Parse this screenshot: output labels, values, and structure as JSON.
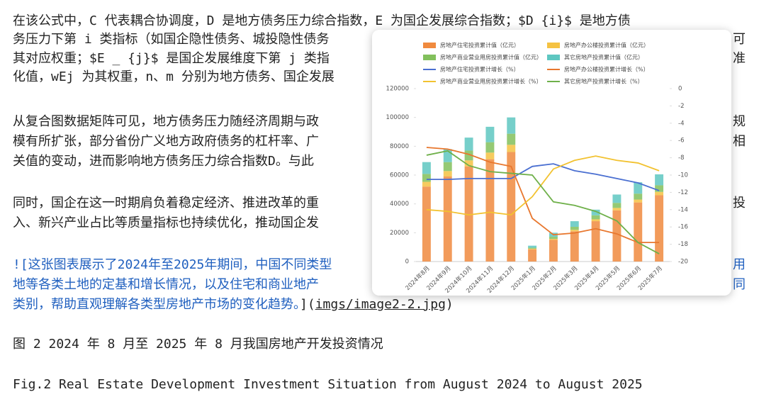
{
  "document": {
    "lines": [
      {
        "text": "在该公式中，C 代表耦合协调度，D 是地方债务压力综合指数，E 为国企发展综合指数；$D   {i}$ 是地方债"
      },
      {
        "text": "务压力下第 i 类指标（如国企隐性债务、城投隐性债务",
        "tail": "可"
      },
      {
        "text": "其对应权重；$E _ {j}$ 是国企发展维度下第 j 类指",
        "tail": "准"
      },
      {
        "text": "化值，wEj 为其权重，n、m 分别为地方债务、国企发展"
      },
      {
        "text": "从复合图数据矩阵可见，地方债务压力随经济周期与政",
        "tail": "规"
      },
      {
        "text": "模有所扩张，部分省份广义地方政府债务的杠杆率、广",
        "tail": "相"
      },
      {
        "text": "关值的变动，进而影响地方债务压力综合指数D。与此"
      },
      {
        "text": "同时，国企在这一时期肩负着稳定经济、推进改革的重",
        "tail": "投"
      },
      {
        "text": "入、新兴产业占比等质量指标也持续优化，推动国企发"
      }
    ],
    "image_link": {
      "lines": [
        {
          "text": "![这张图表展示了2024年至2025年期间，中国不同类型",
          "tail": "用"
        },
        {
          "text": "地等各类土地的定基和增长情况，以及住宅和商业地产",
          "tail": "同"
        },
        {
          "text": "类别，帮助直观理解各类型房地产市场的变化趋势。"
        }
      ],
      "close": "](",
      "path": "imgs/image2-2.jpg",
      "end": ")"
    },
    "caption_cn": "图 2 2024 年 8 月至 2025 年 8 月我国房地产开发投资情况",
    "caption_en": "Fig.2 Real Estate Development Investment Situation from August 2024 to August 2025"
  },
  "chart_data": {
    "type": "bar",
    "categories": [
      "2024年8月",
      "2024年9月",
      "2024年10月",
      "2024年11月",
      "2024年12月",
      "2025年1月",
      "2025年2月",
      "2025年3月",
      "2025年4月",
      "2025年5月",
      "2025年6月",
      "2025年7月"
    ],
    "series": [
      {
        "name": "房地产住宅投资累计值（亿元）",
        "color": "#f08a3e",
        "values": [
          52000,
          59000,
          66000,
          71000,
          76000,
          8500,
          15000,
          21000,
          28000,
          35500,
          41000,
          46000
        ]
      },
      {
        "name": "房地产办公楼投资累计值（亿元）",
        "color": "#f5c242",
        "values": [
          3300,
          3800,
          4200,
          4600,
          5000,
          400,
          700,
          1000,
          1300,
          1700,
          2000,
          2300
        ]
      },
      {
        "name": "房地产商业营业用房投资累计值（亿元）",
        "color": "#82c05c",
        "values": [
          5500,
          6200,
          6800,
          7200,
          7700,
          700,
          1500,
          2100,
          2800,
          3500,
          4100,
          4600
        ]
      },
      {
        "name": "其它房地产投资累计值（亿元）",
        "color": "#5ec7c1",
        "values": [
          8200,
          9000,
          9000,
          10700,
          11300,
          1400,
          2800,
          3900,
          3900,
          5800,
          7900,
          7600
        ]
      },
      {
        "name": "房地产住宅投资累计增长（%）",
        "color": "#4a6fd1",
        "type": "line",
        "axis": "y2",
        "values": [
          -10.5,
          -10.5,
          -10.4,
          -10.4,
          -10.4,
          -9.0,
          -8.7,
          -9.5,
          -9.9,
          -10.4,
          -10.9,
          -11.8
        ]
      },
      {
        "name": "房地产办公楼投资累计增长（%）",
        "color": "#e8772e",
        "type": "line",
        "axis": "y2",
        "values": [
          -6.8,
          -7.0,
          -7.6,
          -8.5,
          -9.0,
          -15.0,
          -16.9,
          -16.7,
          -16.2,
          -16.8,
          -17.8,
          -17.8
        ]
      },
      {
        "name": "房地产商业营业用房投资累计增长（%）",
        "color": "#f2c230",
        "type": "line",
        "axis": "y2",
        "values": [
          -14.0,
          -14.2,
          -14.6,
          -14.3,
          -14.6,
          -12.5,
          -9.3,
          -8.3,
          -7.8,
          -8.3,
          -8.6,
          -9.5
        ]
      },
      {
        "name": "其它房地产投资累计增长（%）",
        "color": "#6fb04a",
        "type": "line",
        "axis": "y2",
        "values": [
          -7.7,
          -7.2,
          -8.9,
          -9.6,
          -9.8,
          -10.0,
          -13.1,
          -13.5,
          -14.2,
          -15.3,
          -17.8,
          -19.1
        ]
      }
    ],
    "stacked": true,
    "ylim": [
      0,
      120000
    ],
    "yticks": [
      0,
      20000,
      40000,
      60000,
      80000,
      100000,
      120000
    ],
    "y2lim": [
      -20,
      0
    ],
    "y2ticks": [
      0,
      -2,
      -4,
      -6,
      -8,
      -10,
      -12,
      -14,
      -16,
      -18,
      -20
    ]
  }
}
